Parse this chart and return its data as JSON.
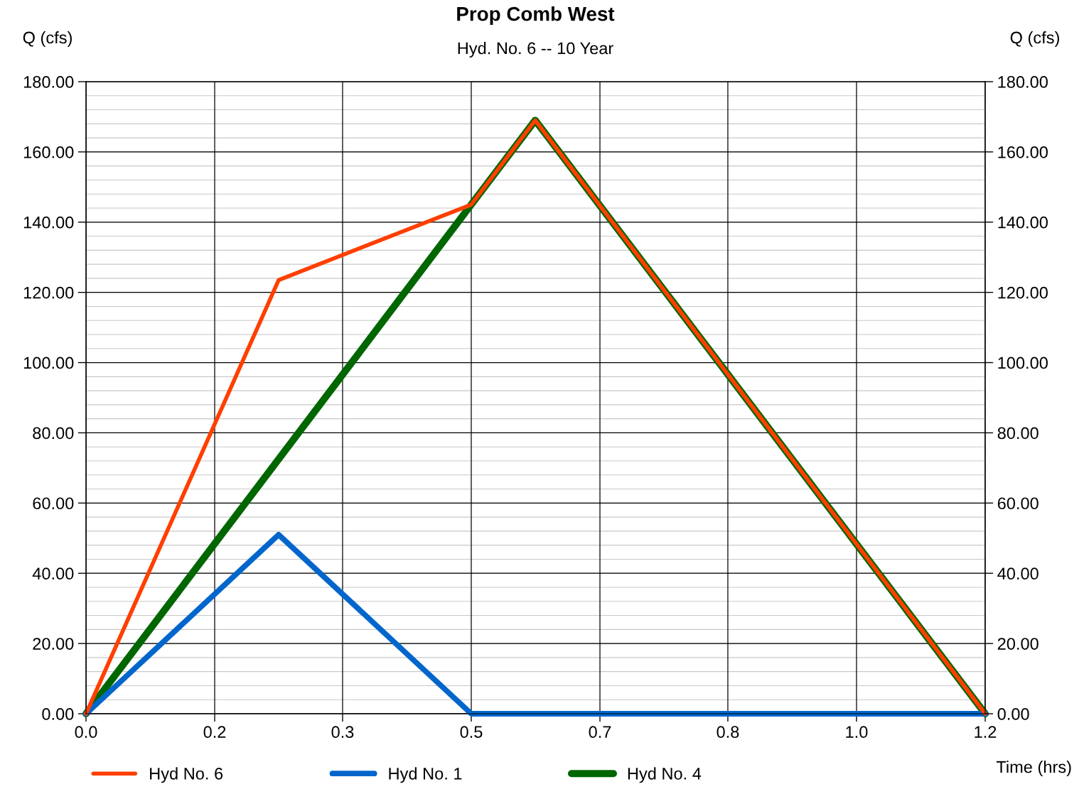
{
  "chart_data": {
    "type": "line",
    "title": "Prop Comb West",
    "subtitle": "Hyd. No. 6 -- 10 Year",
    "xlabel": "Time (hrs)",
    "ylabel": "Q (cfs)",
    "y2label": "Q (cfs)",
    "xlim": [
      0,
      1.167
    ],
    "xticks": [
      {
        "value": 0,
        "label": "0.0"
      },
      {
        "value": 0.167,
        "label": "0.2"
      },
      {
        "value": 0.333,
        "label": "0.3"
      },
      {
        "value": 0.5,
        "label": "0.5"
      },
      {
        "value": 0.667,
        "label": "0.7"
      },
      {
        "value": 0.833,
        "label": "0.8"
      },
      {
        "value": 1.0,
        "label": "1.0"
      },
      {
        "value": 1.167,
        "label": "1.2"
      }
    ],
    "ylim": [
      0,
      180
    ],
    "yticks": [
      {
        "value": 0,
        "label": "0.00"
      },
      {
        "value": 20,
        "label": "20.00"
      },
      {
        "value": 40,
        "label": "40.00"
      },
      {
        "value": 60,
        "label": "60.00"
      },
      {
        "value": 80,
        "label": "80.00"
      },
      {
        "value": 100,
        "label": "100.00"
      },
      {
        "value": 120,
        "label": "120.00"
      },
      {
        "value": 140,
        "label": "140.00"
      },
      {
        "value": 160,
        "label": "160.00"
      },
      {
        "value": 180,
        "label": "180.00"
      }
    ],
    "y2lim": [
      0,
      180
    ],
    "y2ticks": [
      {
        "value": 0,
        "label": "0.00"
      },
      {
        "value": 20,
        "label": "20.00"
      },
      {
        "value": 40,
        "label": "40.00"
      },
      {
        "value": 60,
        "label": "60.00"
      },
      {
        "value": 80,
        "label": "80.00"
      },
      {
        "value": 100,
        "label": "100.00"
      },
      {
        "value": 120,
        "label": "120.00"
      },
      {
        "value": 140,
        "label": "140.00"
      },
      {
        "value": 160,
        "label": "160.00"
      },
      {
        "value": 180,
        "label": "180.00"
      }
    ],
    "grid": true,
    "legend": "bottom left",
    "marker": "none",
    "line_style": "solid",
    "series": [
      {
        "name": "Hyd No. 6",
        "color": "#ff3f00",
        "x": [
          0,
          0.25,
          0.5,
          0.583,
          1.167
        ],
        "values": [
          0,
          123.5,
          145,
          169,
          0
        ]
      },
      {
        "name": "Hyd No. 1",
        "color": "#0066cc",
        "x": [
          0,
          0.25,
          0.5,
          1.167
        ],
        "values": [
          0,
          51,
          0,
          0
        ]
      },
      {
        "name": "Hyd No. 4",
        "color": "#006600",
        "x": [
          0,
          0.5,
          0.583,
          1.167
        ],
        "values": [
          0,
          145,
          169,
          0
        ]
      }
    ]
  }
}
